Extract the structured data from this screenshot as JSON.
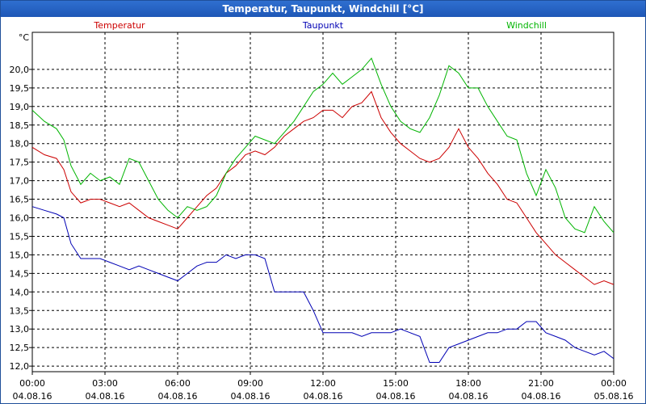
{
  "window": {
    "title": "Temperatur, Taupunkt, Windchill [°C]"
  },
  "chart_data": {
    "type": "line",
    "title": "Temperatur, Taupunkt, Windchill [°C]",
    "yunit": "°C",
    "ylim": [
      11.85,
      21.0
    ],
    "yticks": [
      "12,0",
      "12,5",
      "13,0",
      "13,5",
      "14,0",
      "14,5",
      "15,0",
      "15,5",
      "16,0",
      "16,5",
      "17,0",
      "17,5",
      "18,0",
      "18,5",
      "19,0",
      "19,5",
      "20,0"
    ],
    "xlim": [
      0,
      24
    ],
    "xticks": [
      {
        "time": "00:00",
        "date": "04.08.16"
      },
      {
        "time": "03:00",
        "date": "04.08.16"
      },
      {
        "time": "06:00",
        "date": "04.08.16"
      },
      {
        "time": "09:00",
        "date": "04.08.16"
      },
      {
        "time": "12:00",
        "date": "04.08.16"
      },
      {
        "time": "15:00",
        "date": "04.08.16"
      },
      {
        "time": "18:00",
        "date": "04.08.16"
      },
      {
        "time": "21:00",
        "date": "04.08.16"
      },
      {
        "time": "00:00",
        "date": "05.08.16"
      }
    ],
    "grid": true,
    "legend": "top",
    "series": [
      {
        "name": "Temperatur",
        "color": "#cc0000",
        "x": [
          0,
          0.5,
          1,
          1.3,
          1.6,
          2.0,
          2.4,
          2.8,
          3.2,
          3.6,
          4.0,
          4.4,
          4.8,
          5.2,
          5.6,
          6.0,
          6.4,
          6.8,
          7.2,
          7.6,
          8.0,
          8.4,
          8.8,
          9.2,
          9.6,
          10.0,
          10.4,
          10.8,
          11.2,
          11.6,
          12.0,
          12.4,
          12.8,
          13.2,
          13.6,
          14.0,
          14.4,
          14.8,
          15.2,
          15.6,
          16.0,
          16.4,
          16.8,
          17.2,
          17.6,
          18.0,
          18.4,
          18.8,
          19.2,
          19.6,
          20.0,
          20.4,
          20.8,
          21.2,
          21.6,
          22.0,
          22.4,
          22.8,
          23.2,
          23.6,
          24
        ],
        "y": [
          17.9,
          17.7,
          17.6,
          17.3,
          16.7,
          16.4,
          16.5,
          16.5,
          16.4,
          16.3,
          16.4,
          16.2,
          16.0,
          15.9,
          15.8,
          15.7,
          16.0,
          16.3,
          16.6,
          16.8,
          17.2,
          17.4,
          17.7,
          17.8,
          17.7,
          17.9,
          18.2,
          18.4,
          18.6,
          18.7,
          18.9,
          18.9,
          18.7,
          19.0,
          19.1,
          19.4,
          18.7,
          18.3,
          18.0,
          17.8,
          17.6,
          17.5,
          17.6,
          17.9,
          18.4,
          17.9,
          17.6,
          17.2,
          16.9,
          16.5,
          16.4,
          16.0,
          15.6,
          15.3,
          15.0,
          14.8,
          14.6,
          14.4,
          14.2,
          14.3,
          14.2
        ]
      },
      {
        "name": "Taupunkt",
        "color": "#0000b4",
        "x": [
          0,
          0.5,
          1,
          1.3,
          1.6,
          2.0,
          2.4,
          2.8,
          3.2,
          3.6,
          4.0,
          4.4,
          4.8,
          5.2,
          5.6,
          6.0,
          6.4,
          6.8,
          7.2,
          7.6,
          8.0,
          8.4,
          8.8,
          9.2,
          9.6,
          10.0,
          10.4,
          10.8,
          11.2,
          11.6,
          12.0,
          12.4,
          12.8,
          13.2,
          13.6,
          14.0,
          14.4,
          14.8,
          15.2,
          15.6,
          16.0,
          16.4,
          16.8,
          17.2,
          17.6,
          18.0,
          18.4,
          18.8,
          19.2,
          19.6,
          20.0,
          20.4,
          20.8,
          21.2,
          21.6,
          22.0,
          22.4,
          22.8,
          23.2,
          23.6,
          24
        ],
        "y": [
          16.3,
          16.2,
          16.1,
          16.0,
          15.3,
          14.9,
          14.9,
          14.9,
          14.8,
          14.7,
          14.6,
          14.7,
          14.6,
          14.5,
          14.4,
          14.3,
          14.5,
          14.7,
          14.8,
          14.8,
          15.0,
          14.9,
          15.0,
          15.0,
          14.9,
          14.0,
          14.0,
          14.0,
          14.0,
          13.5,
          12.9,
          12.9,
          12.9,
          12.9,
          12.8,
          12.9,
          12.9,
          12.9,
          13.0,
          12.9,
          12.8,
          12.1,
          12.1,
          12.5,
          12.6,
          12.7,
          12.8,
          12.9,
          12.9,
          13.0,
          13.0,
          13.2,
          13.2,
          12.9,
          12.8,
          12.7,
          12.5,
          12.4,
          12.3,
          12.4,
          12.2
        ]
      },
      {
        "name": "Windchill",
        "color": "#00b400",
        "x": [
          0,
          0.5,
          1,
          1.3,
          1.6,
          2.0,
          2.4,
          2.8,
          3.2,
          3.6,
          4.0,
          4.4,
          4.8,
          5.2,
          5.6,
          6.0,
          6.4,
          6.8,
          7.2,
          7.6,
          8.0,
          8.4,
          8.8,
          9.2,
          9.6,
          10.0,
          10.4,
          10.8,
          11.2,
          11.6,
          12.0,
          12.4,
          12.8,
          13.2,
          13.6,
          14.0,
          14.4,
          14.8,
          15.2,
          15.6,
          16.0,
          16.4,
          16.8,
          17.2,
          17.6,
          18.0,
          18.4,
          18.8,
          19.2,
          19.6,
          20.0,
          20.4,
          20.8,
          21.2,
          21.6,
          22.0,
          22.4,
          22.8,
          23.2,
          23.6,
          24
        ],
        "y": [
          18.9,
          18.6,
          18.4,
          18.1,
          17.4,
          16.9,
          17.2,
          17.0,
          17.1,
          16.9,
          17.6,
          17.5,
          17.0,
          16.5,
          16.2,
          16.0,
          16.3,
          16.2,
          16.3,
          16.6,
          17.2,
          17.6,
          17.9,
          18.2,
          18.1,
          18.0,
          18.3,
          18.6,
          19.0,
          19.4,
          19.6,
          19.9,
          19.6,
          19.8,
          20.0,
          20.3,
          19.6,
          19.0,
          18.6,
          18.4,
          18.3,
          18.7,
          19.3,
          20.1,
          19.9,
          19.5,
          19.5,
          19.0,
          18.6,
          18.2,
          18.1,
          17.2,
          16.6,
          17.3,
          16.8,
          16.0,
          15.7,
          15.6,
          16.3,
          15.9,
          15.6
        ]
      }
    ]
  }
}
